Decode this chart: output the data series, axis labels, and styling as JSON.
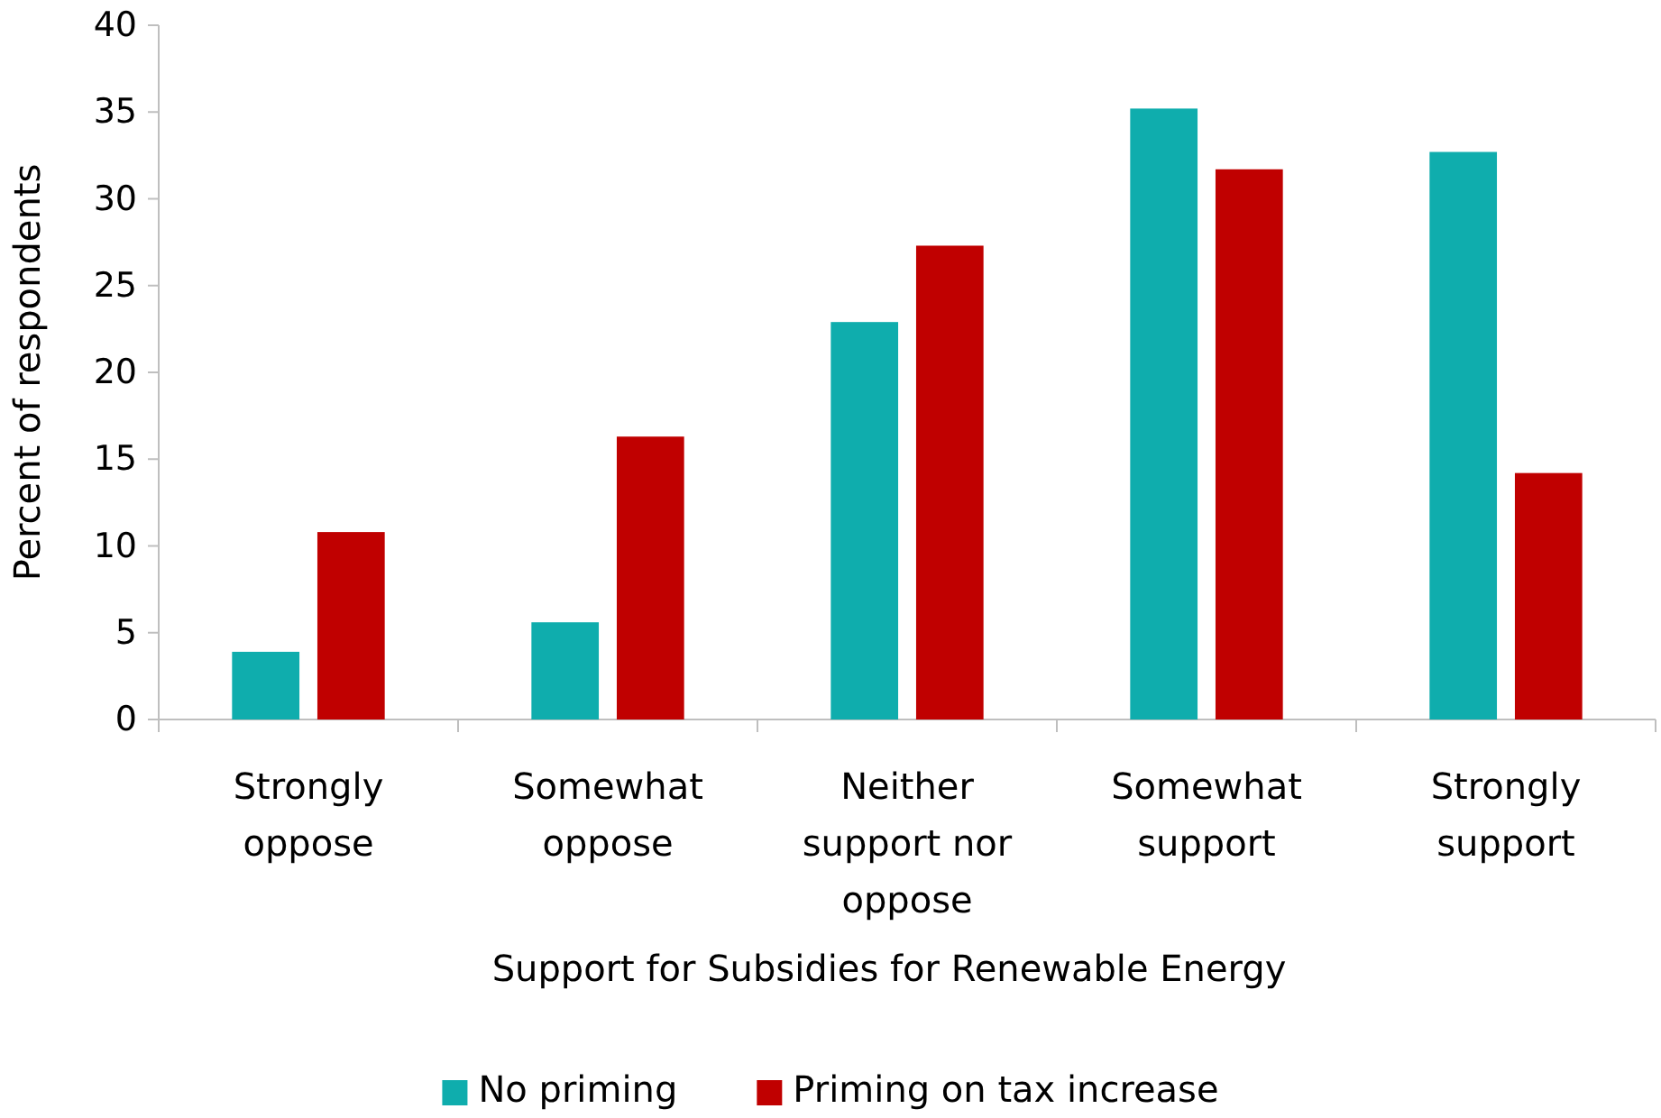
{
  "chart_data": {
    "type": "bar",
    "xlabel": "Support for Subsidies for Renewable Energy",
    "ylabel": "Percent of respondents",
    "categories": [
      "Strongly oppose",
      "Somewhat oppose",
      "Neither support nor oppose",
      "Somewhat support",
      "Strongly support"
    ],
    "series": [
      {
        "name": "No priming",
        "color": "#0fadad",
        "values": [
          3.9,
          5.6,
          22.9,
          35.2,
          32.7
        ]
      },
      {
        "name": "Priming on tax increase",
        "color": "#c00000",
        "values": [
          10.8,
          16.3,
          27.3,
          31.7,
          14.2
        ]
      }
    ],
    "ylim": [
      0,
      40
    ],
    "yticks": [
      0,
      5,
      10,
      15,
      20,
      25,
      30,
      35,
      40
    ],
    "grid": false,
    "legend": "bottom"
  }
}
